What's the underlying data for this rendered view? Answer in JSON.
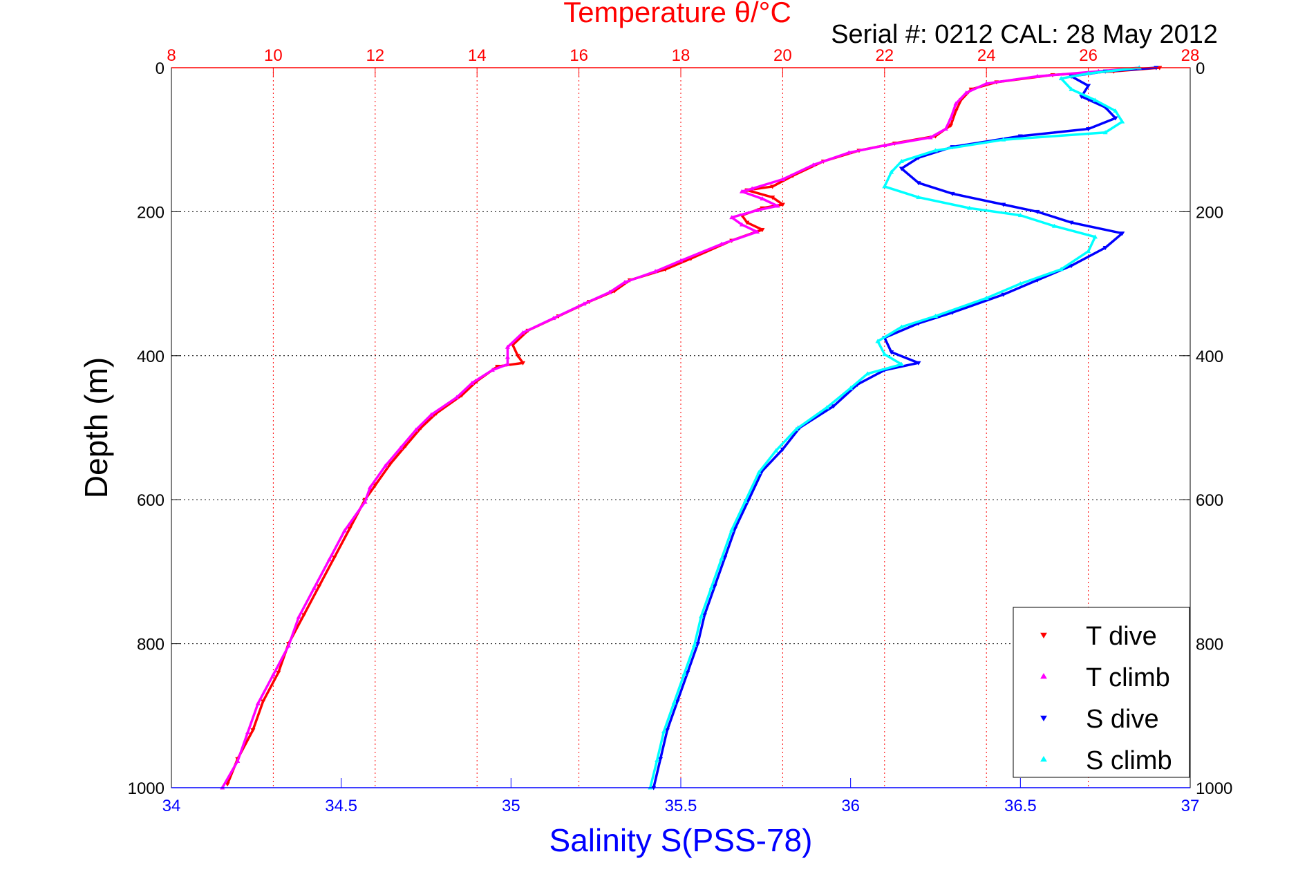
{
  "chart_data": {
    "type": "scatter",
    "title": "Temperature θ/°C",
    "subtitle": "Serial #: 0212  CAL: 28 May 2012",
    "ylabel": "Depth (m)",
    "xlabel_bottom": "Salinity S(PSS-78)",
    "ylim": [
      0,
      1000
    ],
    "y_reversed": true,
    "y_ticks": [
      0,
      200,
      400,
      600,
      800,
      1000
    ],
    "x_top": {
      "label": "Temperature θ/°C",
      "range": [
        8,
        28
      ],
      "ticks": [
        8,
        10,
        12,
        14,
        16,
        18,
        20,
        22,
        24,
        26,
        28
      ]
    },
    "x_bottom": {
      "label": "Salinity S(PSS-78)",
      "range": [
        34,
        37
      ],
      "ticks": [
        34,
        34.5,
        35,
        35.5,
        36,
        36.5,
        37
      ]
    },
    "grid": true,
    "legend_position": "bottom-right",
    "colors": {
      "t_dive": "#ff0000",
      "t_climb": "#ff00ff",
      "s_dive": "#0000ff",
      "s_climb": "#00ffff",
      "top_axis": "#ff0000",
      "bottom_axis": "#0000ff"
    },
    "series": [
      {
        "name": "T dive",
        "axis": "top",
        "marker": "triangle-down",
        "points": [
          [
            27.4,
            0
          ],
          [
            26.5,
            5
          ],
          [
            25.3,
            10
          ],
          [
            24.2,
            20
          ],
          [
            23.7,
            30
          ],
          [
            23.5,
            45
          ],
          [
            23.4,
            60
          ],
          [
            23.3,
            80
          ],
          [
            23.0,
            95
          ],
          [
            22.2,
            105
          ],
          [
            21.5,
            115
          ],
          [
            20.8,
            130
          ],
          [
            20.2,
            150
          ],
          [
            19.8,
            165
          ],
          [
            19.3,
            170
          ],
          [
            19.8,
            180
          ],
          [
            20.0,
            190
          ],
          [
            19.6,
            195
          ],
          [
            19.2,
            205
          ],
          [
            19.3,
            215
          ],
          [
            19.6,
            225
          ],
          [
            19.0,
            240
          ],
          [
            18.2,
            265
          ],
          [
            17.7,
            280
          ],
          [
            17.0,
            295
          ],
          [
            16.7,
            310
          ],
          [
            16.2,
            325
          ],
          [
            15.6,
            345
          ],
          [
            15.0,
            365
          ],
          [
            14.7,
            385
          ],
          [
            14.8,
            400
          ],
          [
            14.9,
            410
          ],
          [
            14.4,
            415
          ],
          [
            14.0,
            435
          ],
          [
            13.7,
            455
          ],
          [
            13.2,
            480
          ],
          [
            12.9,
            500
          ],
          [
            12.6,
            525
          ],
          [
            12.3,
            550
          ],
          [
            12.0,
            580
          ],
          [
            11.8,
            600
          ],
          [
            11.5,
            640
          ],
          [
            11.2,
            680
          ],
          [
            10.9,
            720
          ],
          [
            10.6,
            760
          ],
          [
            10.3,
            800
          ],
          [
            10.1,
            840
          ],
          [
            9.8,
            880
          ],
          [
            9.6,
            920
          ],
          [
            9.3,
            960
          ],
          [
            9.1,
            995
          ]
        ]
      },
      {
        "name": "T climb",
        "axis": "top",
        "marker": "triangle-up",
        "points": [
          [
            27.0,
            0
          ],
          [
            26.2,
            5
          ],
          [
            25.0,
            12
          ],
          [
            24.0,
            22
          ],
          [
            23.6,
            35
          ],
          [
            23.4,
            50
          ],
          [
            23.3,
            70
          ],
          [
            23.2,
            85
          ],
          [
            22.9,
            97
          ],
          [
            22.0,
            108
          ],
          [
            21.3,
            118
          ],
          [
            20.6,
            135
          ],
          [
            20.0,
            155
          ],
          [
            19.4,
            168
          ],
          [
            19.2,
            172
          ],
          [
            19.6,
            182
          ],
          [
            19.9,
            192
          ],
          [
            19.5,
            198
          ],
          [
            19.0,
            208
          ],
          [
            19.2,
            218
          ],
          [
            19.5,
            228
          ],
          [
            18.8,
            245
          ],
          [
            18.0,
            268
          ],
          [
            17.5,
            283
          ],
          [
            16.9,
            298
          ],
          [
            16.6,
            312
          ],
          [
            16.1,
            328
          ],
          [
            15.5,
            348
          ],
          [
            14.9,
            368
          ],
          [
            14.6,
            388
          ],
          [
            14.6,
            402
          ],
          [
            14.6,
            412
          ],
          [
            14.3,
            420
          ],
          [
            13.9,
            438
          ],
          [
            13.6,
            458
          ],
          [
            13.1,
            482
          ],
          [
            12.8,
            503
          ],
          [
            12.5,
            528
          ],
          [
            12.2,
            553
          ],
          [
            11.9,
            583
          ],
          [
            11.8,
            603
          ],
          [
            11.4,
            643
          ],
          [
            11.1,
            683
          ],
          [
            10.8,
            723
          ],
          [
            10.5,
            763
          ],
          [
            10.3,
            803
          ],
          [
            10.0,
            843
          ],
          [
            9.7,
            883
          ],
          [
            9.5,
            923
          ],
          [
            9.3,
            963
          ],
          [
            9.0,
            1000
          ]
        ]
      },
      {
        "name": "S dive",
        "axis": "bottom",
        "marker": "triangle-down",
        "points": [
          [
            36.9,
            0
          ],
          [
            36.75,
            5
          ],
          [
            36.65,
            12
          ],
          [
            36.7,
            25
          ],
          [
            36.68,
            40
          ],
          [
            36.75,
            55
          ],
          [
            36.78,
            70
          ],
          [
            36.7,
            85
          ],
          [
            36.5,
            95
          ],
          [
            36.3,
            110
          ],
          [
            36.2,
            125
          ],
          [
            36.15,
            140
          ],
          [
            36.2,
            160
          ],
          [
            36.3,
            175
          ],
          [
            36.45,
            190
          ],
          [
            36.55,
            200
          ],
          [
            36.65,
            215
          ],
          [
            36.8,
            230
          ],
          [
            36.75,
            250
          ],
          [
            36.65,
            275
          ],
          [
            36.55,
            295
          ],
          [
            36.45,
            315
          ],
          [
            36.3,
            340
          ],
          [
            36.2,
            355
          ],
          [
            36.1,
            375
          ],
          [
            36.12,
            395
          ],
          [
            36.2,
            410
          ],
          [
            36.1,
            420
          ],
          [
            36.02,
            440
          ],
          [
            35.95,
            470
          ],
          [
            35.85,
            500
          ],
          [
            35.8,
            530
          ],
          [
            35.74,
            560
          ],
          [
            35.7,
            600
          ],
          [
            35.66,
            640
          ],
          [
            35.63,
            680
          ],
          [
            35.6,
            720
          ],
          [
            35.57,
            760
          ],
          [
            35.55,
            800
          ],
          [
            35.52,
            840
          ],
          [
            35.49,
            880
          ],
          [
            35.46,
            920
          ],
          [
            35.44,
            960
          ],
          [
            35.42,
            1000
          ]
        ]
      },
      {
        "name": "S climb",
        "axis": "bottom",
        "marker": "triangle-up",
        "points": [
          [
            36.85,
            0
          ],
          [
            36.7,
            8
          ],
          [
            36.62,
            15
          ],
          [
            36.65,
            30
          ],
          [
            36.72,
            45
          ],
          [
            36.78,
            60
          ],
          [
            36.8,
            75
          ],
          [
            36.75,
            90
          ],
          [
            36.45,
            100
          ],
          [
            36.25,
            115
          ],
          [
            36.15,
            130
          ],
          [
            36.12,
            145
          ],
          [
            36.1,
            165
          ],
          [
            36.2,
            180
          ],
          [
            36.35,
            195
          ],
          [
            36.5,
            205
          ],
          [
            36.6,
            220
          ],
          [
            36.72,
            235
          ],
          [
            36.7,
            255
          ],
          [
            36.62,
            280
          ],
          [
            36.5,
            300
          ],
          [
            36.4,
            320
          ],
          [
            36.25,
            345
          ],
          [
            36.15,
            360
          ],
          [
            36.08,
            380
          ],
          [
            36.1,
            398
          ],
          [
            36.15,
            412
          ],
          [
            36.05,
            425
          ],
          [
            36.0,
            445
          ],
          [
            35.93,
            472
          ],
          [
            35.84,
            502
          ],
          [
            35.78,
            532
          ],
          [
            35.73,
            562
          ],
          [
            35.69,
            602
          ],
          [
            35.65,
            642
          ],
          [
            35.62,
            682
          ],
          [
            35.59,
            722
          ],
          [
            35.56,
            762
          ],
          [
            35.54,
            802
          ],
          [
            35.51,
            842
          ],
          [
            35.48,
            882
          ],
          [
            35.45,
            922
          ],
          [
            35.43,
            962
          ],
          [
            35.41,
            1000
          ]
        ]
      }
    ]
  }
}
